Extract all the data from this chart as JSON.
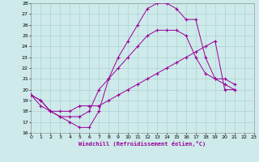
{
  "xlabel": "Windchill (Refroidissement éolien,°C)",
  "bg_color": "#ceeaea",
  "line_color": "#990099",
  "grid_color": "#a8cccc",
  "ylim": [
    16,
    28
  ],
  "xlim": [
    0,
    23
  ],
  "yticks": [
    16,
    17,
    18,
    19,
    20,
    21,
    22,
    23,
    24,
    25,
    26,
    27,
    28
  ],
  "xticks": [
    0,
    1,
    2,
    3,
    4,
    5,
    6,
    7,
    8,
    9,
    10,
    11,
    12,
    13,
    14,
    15,
    16,
    17,
    18,
    19,
    20,
    21,
    22,
    23
  ],
  "s1_x": [
    0,
    1,
    2,
    3,
    4,
    5,
    6,
    7,
    8,
    9,
    10,
    11,
    12,
    13,
    14,
    15,
    16,
    17,
    18,
    19,
    20,
    21
  ],
  "s1_y": [
    19.5,
    19.0,
    18.0,
    17.5,
    17.0,
    16.5,
    16.5,
    18.0,
    21.0,
    23.0,
    24.5,
    26.0,
    27.5,
    28.0,
    28.0,
    27.5,
    26.5,
    26.5,
    23.0,
    21.0,
    20.5,
    20.0
  ],
  "s2_x": [
    0,
    1,
    2,
    3,
    4,
    5,
    6,
    7,
    8,
    9,
    10,
    11,
    12,
    13,
    14,
    15,
    16,
    17,
    18,
    19,
    20,
    21
  ],
  "s2_y": [
    19.5,
    19.0,
    18.0,
    17.5,
    17.5,
    17.5,
    18.0,
    20.0,
    21.0,
    22.0,
    23.0,
    24.0,
    25.0,
    25.5,
    25.5,
    25.5,
    25.0,
    23.0,
    21.5,
    21.0,
    21.0,
    20.5
  ],
  "s3_x": [
    0,
    1,
    2,
    3,
    4,
    5,
    6,
    7,
    8,
    9,
    10,
    11,
    12,
    13,
    14,
    15,
    16,
    17,
    18,
    19,
    20,
    21
  ],
  "s3_y": [
    19.5,
    18.5,
    18.0,
    18.0,
    18.0,
    18.5,
    18.5,
    18.5,
    19.0,
    19.5,
    20.0,
    20.5,
    21.0,
    21.5,
    22.0,
    22.5,
    23.0,
    23.5,
    24.0,
    24.5,
    20.0,
    20.0
  ]
}
